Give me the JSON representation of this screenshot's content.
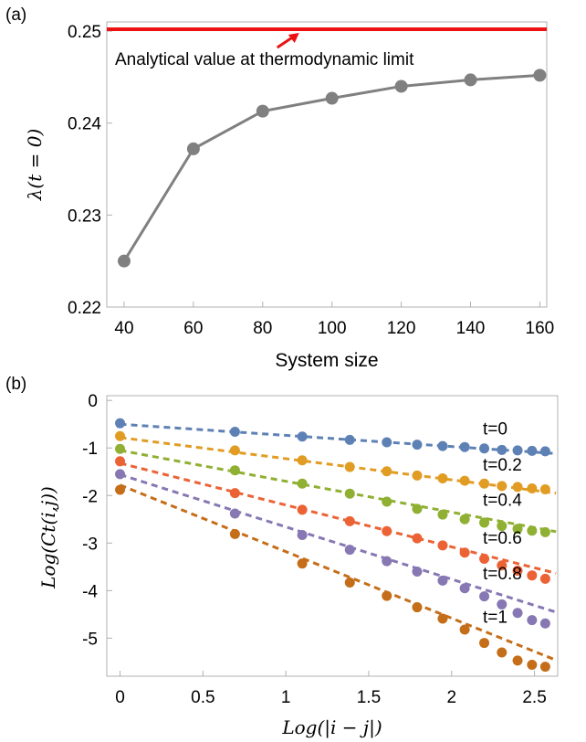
{
  "chart_data": [
    {
      "panel": "(a)",
      "type": "line",
      "xlabel": "System size",
      "ylabel": "λ(t = 0)",
      "xlim": [
        35,
        162
      ],
      "ylim": [
        0.22,
        0.251
      ],
      "xticks": [
        40,
        60,
        80,
        100,
        120,
        140,
        160
      ],
      "yticks": [
        0.22,
        0.23,
        0.24,
        0.25
      ],
      "x": [
        40,
        60,
        80,
        100,
        120,
        140,
        160
      ],
      "y": [
        0.225,
        0.2372,
        0.2413,
        0.2427,
        0.244,
        0.2447,
        0.2452
      ],
      "series_color": "#808080",
      "reference_line": {
        "y": 0.2502,
        "color": "#ee1111"
      },
      "annotation": {
        "text": "Analytical value at thermodynamic limit",
        "arrow_color": "#ee1111",
        "arrow_to": [
          90,
          0.2502
        ]
      }
    },
    {
      "panel": "(b)",
      "type": "scatter",
      "xlabel": "Log(|i − j|)",
      "ylabel": "Log(Ct(i,j))",
      "xlim": [
        -0.08,
        2.64
      ],
      "ylim": [
        -5.8,
        0.1
      ],
      "xticks": [
        "0",
        "0.5",
        "1",
        "1.5",
        "2",
        "2.5"
      ],
      "xtick_values": [
        0,
        0.5,
        1,
        1.5,
        2,
        2.5
      ],
      "yticks": [
        "0",
        "-1",
        "-2",
        "-3",
        "-4",
        "-5"
      ],
      "ytick_values": [
        0,
        -1,
        -2,
        -3,
        -4,
        -5
      ],
      "x": [
        0,
        0.693,
        1.099,
        1.386,
        1.609,
        1.792,
        1.946,
        2.079,
        2.197,
        2.303,
        2.398,
        2.485,
        2.565
      ],
      "series": [
        {
          "name": "t=0",
          "color": "#5e81b5",
          "fit": [
            -0.5,
            -0.235
          ],
          "values": [
            -0.48,
            -0.66,
            -0.76,
            -0.83,
            -0.88,
            -0.93,
            -0.96,
            -0.98,
            -1.01,
            -1.04,
            -1.05,
            -1.06,
            -1.07
          ]
        },
        {
          "name": "t=0.2",
          "color": "#e19c24",
          "fit": [
            -0.78,
            -0.445
          ],
          "values": [
            -0.75,
            -1.05,
            -1.26,
            -1.4,
            -1.49,
            -1.58,
            -1.64,
            -1.69,
            -1.75,
            -1.8,
            -1.82,
            -1.85,
            -1.87
          ]
        },
        {
          "name": "t=0.4",
          "color": "#8fb032",
          "fit": [
            -1.05,
            -0.65
          ],
          "values": [
            -1.02,
            -1.47,
            -1.75,
            -1.96,
            -2.13,
            -2.28,
            -2.4,
            -2.5,
            -2.57,
            -2.64,
            -2.7,
            -2.74,
            -2.77
          ]
        },
        {
          "name": "t=0.6",
          "color": "#eb6235",
          "fit": [
            -1.32,
            -0.88
          ],
          "values": [
            -1.28,
            -1.95,
            -2.3,
            -2.54,
            -2.75,
            -2.9,
            -3.05,
            -3.2,
            -3.33,
            -3.47,
            -3.58,
            -3.68,
            -3.75
          ]
        },
        {
          "name": "t=0.8",
          "color": "#8778b3",
          "fit": [
            -1.56,
            -1.1
          ],
          "values": [
            -1.55,
            -2.38,
            -2.83,
            -3.14,
            -3.38,
            -3.6,
            -3.79,
            -3.95,
            -4.12,
            -4.29,
            -4.47,
            -4.62,
            -4.69
          ]
        },
        {
          "name": "t=1",
          "color": "#c56e1a",
          "fit": [
            -1.78,
            -1.4
          ],
          "values": [
            -1.88,
            -2.81,
            -3.43,
            -3.83,
            -4.11,
            -4.35,
            -4.59,
            -4.82,
            -5.1,
            -5.3,
            -5.47,
            -5.56,
            -5.6
          ]
        }
      ]
    }
  ]
}
